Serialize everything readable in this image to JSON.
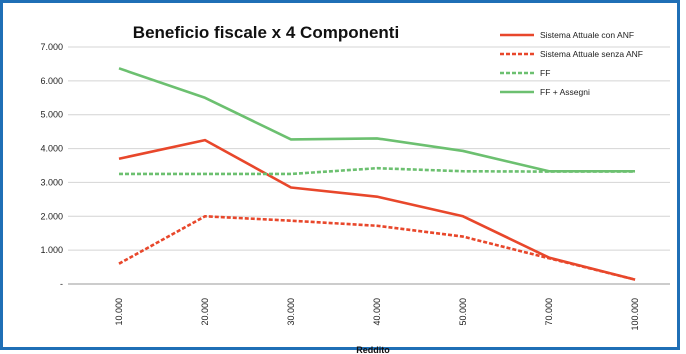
{
  "chart_data": {
    "type": "line",
    "title": "Beneficio fiscale x 4 Componenti",
    "xlabel": "Reddito",
    "ylabel": "",
    "categories": [
      "10.000",
      "20.000",
      "30.000",
      "40.000",
      "50.000",
      "70.000",
      "100.000"
    ],
    "ylim": [
      0,
      7000
    ],
    "yticks": [
      0,
      1000,
      2000,
      3000,
      4000,
      5000,
      6000,
      7000
    ],
    "ytick_labels": [
      "-",
      "1.000",
      "2.000",
      "3.000",
      "4.000",
      "5.000",
      "6.000",
      "7.000"
    ],
    "grid": "horizontal",
    "legend_position": "top-right",
    "series": [
      {
        "name": "Sistema Attuale con ANF",
        "color": "#e8472b",
        "dash": "solid",
        "values": [
          3700,
          4250,
          2850,
          2580,
          2000,
          780,
          130
        ]
      },
      {
        "name": "Sistema Attuale senza ANF",
        "color": "#e8472b",
        "dash": "dashed",
        "values": [
          600,
          2000,
          1870,
          1720,
          1400,
          760,
          130
        ]
      },
      {
        "name": "FF",
        "color": "#6cc070",
        "dash": "dashed",
        "values": [
          3250,
          3250,
          3250,
          3420,
          3330,
          3320,
          3320
        ]
      },
      {
        "name": "FF + Assegni",
        "color": "#6cc070",
        "dash": "solid",
        "values": [
          6370,
          5500,
          4270,
          4300,
          3930,
          3330,
          3330
        ]
      }
    ]
  }
}
